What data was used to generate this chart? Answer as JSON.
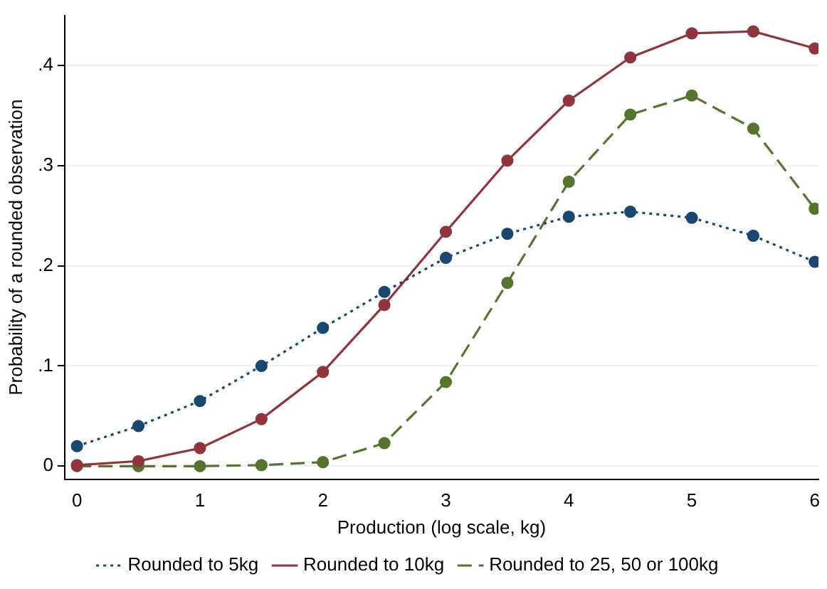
{
  "chart_data": {
    "type": "line",
    "xlabel": "Production (log scale, kg)",
    "ylabel": "Probability of a rounded observation",
    "x": [
      0,
      0.5,
      1,
      1.5,
      2,
      2.5,
      3,
      3.5,
      4,
      4.5,
      5,
      5.5,
      6
    ],
    "series": [
      {
        "name": "Rounded to 5kg",
        "color": "#1a476f",
        "line_style": "dotted",
        "values": [
          0.02,
          0.04,
          0.065,
          0.1,
          0.138,
          0.174,
          0.208,
          0.232,
          0.249,
          0.254,
          0.248,
          0.23,
          0.204
        ]
      },
      {
        "name": "Rounded to 10kg",
        "color": "#90353b",
        "line_style": "solid",
        "values": [
          0.001,
          0.005,
          0.018,
          0.047,
          0.094,
          0.161,
          0.234,
          0.305,
          0.365,
          0.408,
          0.432,
          0.434,
          0.417
        ]
      },
      {
        "name": "Rounded to 25, 50 or 100kg",
        "color": "#55752f",
        "line_style": "dashed",
        "values": [
          0,
          0,
          0,
          0.001,
          0.004,
          0.023,
          0.084,
          0.183,
          0.284,
          0.351,
          0.37,
          0.337,
          0.257
        ]
      }
    ],
    "xlim": [
      -0.1,
      6.03
    ],
    "xticks": [
      0,
      1,
      2,
      3,
      4,
      5,
      6
    ],
    "ylim": [
      -0.013,
      0.45
    ],
    "yticks": [
      0,
      {
        "value": 0.1,
        "label": ".1"
      },
      {
        "value": 0.2,
        "label": ".2"
      },
      {
        "value": 0.3,
        "label": ".3"
      },
      {
        "value": 0.4,
        "label": ".4"
      }
    ],
    "grid": "y",
    "legend": "bottom",
    "marker": "circle"
  }
}
